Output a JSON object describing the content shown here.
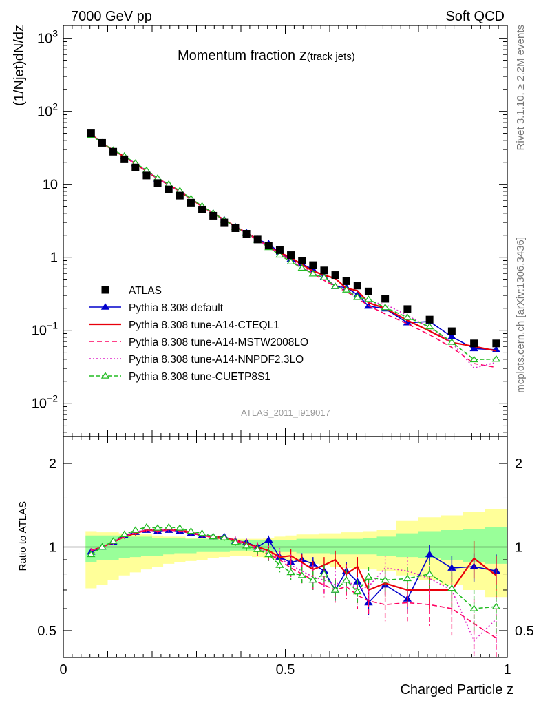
{
  "header": {
    "left": "7000 GeV pp",
    "right": "Soft QCD"
  },
  "side_labels": {
    "rivet": "Rivet 3.1.10, ≥ 2.2M events",
    "mcplots": "mcplots.cern.ch [arXiv:1306.3436]"
  },
  "chart_data": {
    "type": "scatter",
    "title_main": "Momentum fraction ",
    "title_var": "z",
    "title_sub": "(track jets)",
    "analysis_tag": "ATLAS_2011_I919017",
    "xlabel": "Charged Particle z",
    "ylabel_top": "(1/Njet)dN/dz",
    "ylabel_ratio": "Ratio to ATLAS",
    "xlim": [
      0,
      1
    ],
    "ylim_top": [
      0.0035,
      1500
    ],
    "yscale_top": "log",
    "ylim_ratio": [
      0.4,
      2.5
    ],
    "yscale_ratio": "log",
    "legend_position": "bottom-left",
    "x_ticks": [
      {
        "value": 0,
        "label": "0"
      },
      {
        "value": 0.5,
        "label": "0.5"
      },
      {
        "value": 1,
        "label": "1"
      }
    ],
    "y_ticks_top": [
      {
        "value": 0.01,
        "base": "10",
        "exp": "−2"
      },
      {
        "value": 0.1,
        "base": "10",
        "exp": "−1"
      },
      {
        "value": 1,
        "base": "1",
        "exp": ""
      },
      {
        "value": 10,
        "base": "10",
        "exp": ""
      },
      {
        "value": 100,
        "base": "10",
        "exp": "2"
      },
      {
        "value": 1000,
        "base": "10",
        "exp": "3"
      }
    ],
    "y_ticks_ratio": [
      {
        "value": 0.5,
        "label": "0.5"
      },
      {
        "value": 1,
        "label": "1"
      },
      {
        "value": 2,
        "label": "2"
      }
    ],
    "x": [
      0.0625,
      0.0875,
      0.1125,
      0.1375,
      0.1625,
      0.1875,
      0.2125,
      0.2375,
      0.2625,
      0.2875,
      0.3125,
      0.3375,
      0.3625,
      0.3875,
      0.4125,
      0.4375,
      0.4625,
      0.4875,
      0.5125,
      0.5375,
      0.5625,
      0.5875,
      0.6125,
      0.6375,
      0.6625,
      0.6875,
      0.725,
      0.775,
      0.825,
      0.875,
      0.925,
      0.975
    ],
    "data_values": [
      50,
      37,
      28,
      22,
      17,
      13.2,
      10.4,
      8.5,
      7.0,
      5.6,
      4.5,
      3.7,
      3.0,
      2.5,
      2.1,
      1.75,
      1.45,
      1.25,
      1.07,
      0.9,
      0.78,
      0.66,
      0.57,
      0.47,
      0.41,
      0.34,
      0.27,
      0.195,
      0.14,
      0.097,
      0.066,
      0.066
    ],
    "band_inner": [
      [
        0.88,
        1.1
      ],
      [
        0.9,
        1.1
      ],
      [
        0.9,
        1.1
      ],
      [
        0.91,
        1.1
      ],
      [
        0.92,
        1.09
      ],
      [
        0.93,
        1.09
      ],
      [
        0.93,
        1.08
      ],
      [
        0.94,
        1.08
      ],
      [
        0.95,
        1.08
      ],
      [
        0.95,
        1.07
      ],
      [
        0.96,
        1.07
      ],
      [
        0.96,
        1.07
      ],
      [
        0.96,
        1.06
      ],
      [
        0.97,
        1.06
      ],
      [
        0.97,
        1.06
      ],
      [
        0.97,
        1.06
      ],
      [
        0.96,
        1.06
      ],
      [
        0.96,
        1.06
      ],
      [
        0.96,
        1.06
      ],
      [
        0.95,
        1.07
      ],
      [
        0.95,
        1.07
      ],
      [
        0.95,
        1.07
      ],
      [
        0.94,
        1.07
      ],
      [
        0.94,
        1.07
      ],
      [
        0.94,
        1.07
      ],
      [
        0.94,
        1.08
      ],
      [
        0.93,
        1.09
      ],
      [
        0.92,
        1.12
      ],
      [
        0.91,
        1.14
      ],
      [
        0.9,
        1.15
      ],
      [
        0.88,
        1.16
      ],
      [
        0.87,
        1.18
      ]
    ],
    "band_outer": [
      [
        0.71,
        1.14
      ],
      [
        0.73,
        1.13
      ],
      [
        0.76,
        1.13
      ],
      [
        0.79,
        1.12
      ],
      [
        0.81,
        1.11
      ],
      [
        0.83,
        1.11
      ],
      [
        0.85,
        1.1
      ],
      [
        0.87,
        1.09
      ],
      [
        0.88,
        1.09
      ],
      [
        0.89,
        1.08
      ],
      [
        0.9,
        1.08
      ],
      [
        0.91,
        1.07
      ],
      [
        0.92,
        1.07
      ],
      [
        0.93,
        1.07
      ],
      [
        0.93,
        1.07
      ],
      [
        0.92,
        1.07
      ],
      [
        0.91,
        1.08
      ],
      [
        0.9,
        1.09
      ],
      [
        0.89,
        1.1
      ],
      [
        0.88,
        1.11
      ],
      [
        0.87,
        1.11
      ],
      [
        0.86,
        1.12
      ],
      [
        0.85,
        1.12
      ],
      [
        0.84,
        1.13
      ],
      [
        0.83,
        1.13
      ],
      [
        0.83,
        1.14
      ],
      [
        0.82,
        1.15
      ],
      [
        0.79,
        1.24
      ],
      [
        0.76,
        1.28
      ],
      [
        0.73,
        1.3
      ],
      [
        0.7,
        1.34
      ],
      [
        0.66,
        1.37
      ]
    ],
    "series": [
      {
        "name": "ATLAS",
        "kind": "data",
        "color": "#000000",
        "marker": "square"
      },
      {
        "name": "Pythia 8.308 default",
        "kind": "mc",
        "color": "#0000cc",
        "marker": "triangle-filled",
        "dash": "",
        "ratio": [
          0.96,
          1.0,
          1.04,
          1.1,
          1.13,
          1.15,
          1.14,
          1.15,
          1.14,
          1.12,
          1.1,
          1.09,
          1.09,
          1.05,
          1.04,
          1.0,
          1.06,
          0.92,
          0.88,
          0.9,
          0.87,
          0.82,
          0.7,
          0.82,
          0.75,
          0.63,
          0.73,
          0.65,
          0.94,
          0.84,
          0.85,
          0.82
        ],
        "err": [
          0.02,
          0.02,
          0.02,
          0.02,
          0.02,
          0.02,
          0.02,
          0.02,
          0.02,
          0.02,
          0.02,
          0.02,
          0.02,
          0.02,
          0.03,
          0.03,
          0.04,
          0.04,
          0.04,
          0.05,
          0.05,
          0.05,
          0.06,
          0.06,
          0.06,
          0.06,
          0.06,
          0.07,
          0.08,
          0.09,
          0.1,
          0.12
        ]
      },
      {
        "name": "Pythia 8.308 tune-A14-CTEQL1",
        "kind": "mc",
        "color": "#e8000b",
        "marker": "none",
        "dash": "",
        "ratio": [
          0.97,
          1.0,
          1.04,
          1.09,
          1.12,
          1.15,
          1.15,
          1.16,
          1.15,
          1.13,
          1.1,
          1.09,
          1.08,
          1.06,
          1.03,
          1.0,
          0.97,
          0.92,
          0.93,
          0.88,
          0.83,
          0.86,
          0.9,
          0.8,
          0.85,
          0.7,
          0.74,
          0.7,
          0.7,
          0.7,
          0.91,
          0.79
        ],
        "err": [
          0.02,
          0.02,
          0.02,
          0.02,
          0.02,
          0.02,
          0.02,
          0.02,
          0.02,
          0.02,
          0.02,
          0.02,
          0.02,
          0.03,
          0.03,
          0.04,
          0.05,
          0.05,
          0.05,
          0.06,
          0.06,
          0.06,
          0.07,
          0.07,
          0.07,
          0.07,
          0.08,
          0.09,
          0.1,
          0.11,
          0.14,
          0.14
        ]
      },
      {
        "name": "Pythia 8.308 tune-A14-MSTW2008LO",
        "kind": "mc",
        "color": "#ff0060",
        "marker": "none",
        "dash": "7,4",
        "ratio": [
          0.97,
          1.0,
          1.04,
          1.09,
          1.13,
          1.15,
          1.14,
          1.15,
          1.14,
          1.12,
          1.1,
          1.08,
          1.07,
          1.05,
          1.02,
          0.98,
          0.94,
          0.9,
          0.84,
          0.8,
          0.76,
          0.73,
          0.7,
          0.72,
          0.67,
          0.64,
          0.62,
          0.63,
          0.62,
          0.6,
          0.53,
          0.47
        ],
        "err": [
          0.02,
          0.02,
          0.02,
          0.02,
          0.02,
          0.02,
          0.02,
          0.02,
          0.02,
          0.02,
          0.02,
          0.02,
          0.03,
          0.03,
          0.04,
          0.05,
          0.05,
          0.06,
          0.06,
          0.06,
          0.07,
          0.07,
          0.07,
          0.07,
          0.07,
          0.08,
          0.08,
          0.09,
          0.1,
          0.12,
          0.12,
          0.14
        ]
      },
      {
        "name": "Pythia 8.308 tune-A14-NNPDF2.3LO",
        "kind": "mc",
        "color": "#e020c8",
        "marker": "none",
        "dash": "2,3",
        "ratio": [
          0.97,
          1.0,
          1.04,
          1.1,
          1.13,
          1.16,
          1.15,
          1.16,
          1.15,
          1.13,
          1.11,
          1.09,
          1.08,
          1.06,
          1.03,
          0.99,
          0.95,
          0.91,
          0.86,
          0.82,
          0.78,
          0.76,
          0.73,
          0.77,
          0.7,
          0.72,
          0.84,
          0.82,
          0.77,
          0.7,
          0.46,
          0.55
        ],
        "err": [
          0.02,
          0.02,
          0.02,
          0.02,
          0.02,
          0.02,
          0.02,
          0.02,
          0.02,
          0.02,
          0.02,
          0.02,
          0.03,
          0.03,
          0.04,
          0.05,
          0.06,
          0.08,
          0.08,
          0.08,
          0.08,
          0.08,
          0.09,
          0.09,
          0.08,
          0.08,
          0.09,
          0.1,
          0.11,
          0.13,
          0.1,
          0.13
        ]
      },
      {
        "name": "Pythia 8.308 tune-CUETP8S1",
        "kind": "mc",
        "color": "#22bb22",
        "marker": "triangle-open",
        "dash": "6,3",
        "ratio": [
          0.94,
          1.0,
          1.05,
          1.11,
          1.15,
          1.18,
          1.17,
          1.18,
          1.17,
          1.14,
          1.12,
          1.09,
          1.08,
          1.04,
          1.01,
          0.98,
          0.94,
          0.86,
          0.81,
          0.79,
          0.76,
          0.8,
          0.7,
          0.76,
          0.69,
          0.78,
          0.76,
          0.77,
          0.8,
          0.71,
          0.6,
          0.61
        ],
        "err": [
          0.02,
          0.02,
          0.02,
          0.02,
          0.02,
          0.02,
          0.02,
          0.02,
          0.02,
          0.02,
          0.02,
          0.02,
          0.03,
          0.03,
          0.04,
          0.04,
          0.05,
          0.05,
          0.05,
          0.06,
          0.06,
          0.06,
          0.06,
          0.07,
          0.07,
          0.07,
          0.07,
          0.08,
          0.09,
          0.1,
          0.1,
          0.12
        ]
      }
    ]
  }
}
